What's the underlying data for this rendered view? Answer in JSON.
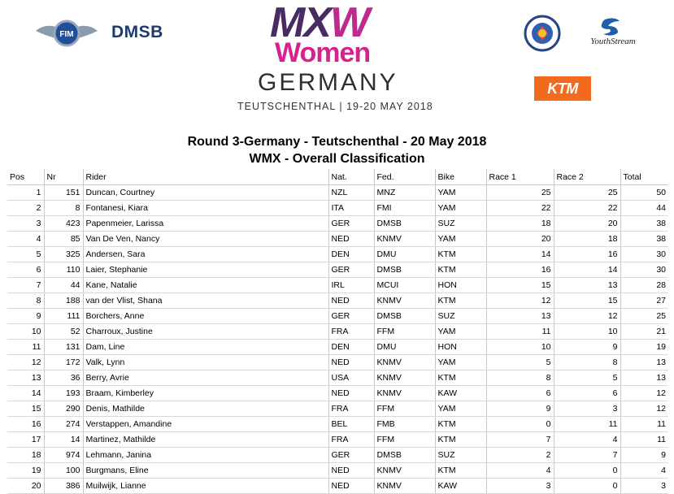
{
  "header": {
    "left_logos": [
      "FIM",
      "DMSB"
    ],
    "event_logo": {
      "mxw_m_x": "MX",
      "mxw_w": "W",
      "women": "Women",
      "country": "GERMANY",
      "venue_dates": "TEUTSCHENTHAL | 19-20 MAY 2018"
    },
    "right_logos": [
      "YouthStream",
      "KTM"
    ]
  },
  "title": {
    "line1": "Round 3-Germany - Teutschenthal - 20 May 2018",
    "line2": "WMX - Overall Classification"
  },
  "table": {
    "columns": [
      "Pos",
      "Nr",
      "Rider",
      "Nat.",
      "Fed.",
      "Bike",
      "Race 1",
      "Race 2",
      "Total"
    ],
    "rows": [
      [
        "1",
        "151",
        "Duncan, Courtney",
        "NZL",
        "MNZ",
        "YAM",
        "25",
        "25",
        "50"
      ],
      [
        "2",
        "8",
        "Fontanesi, Kiara",
        "ITA",
        "FMI",
        "YAM",
        "22",
        "22",
        "44"
      ],
      [
        "3",
        "423",
        "Papenmeier, Larissa",
        "GER",
        "DMSB",
        "SUZ",
        "18",
        "20",
        "38"
      ],
      [
        "4",
        "85",
        "Van De Ven, Nancy",
        "NED",
        "KNMV",
        "YAM",
        "20",
        "18",
        "38"
      ],
      [
        "5",
        "325",
        "Andersen, Sara",
        "DEN",
        "DMU",
        "KTM",
        "14",
        "16",
        "30"
      ],
      [
        "6",
        "110",
        "Laier, Stephanie",
        "GER",
        "DMSB",
        "KTM",
        "16",
        "14",
        "30"
      ],
      [
        "7",
        "44",
        "Kane, Natalie",
        "IRL",
        "MCUI",
        "HON",
        "15",
        "13",
        "28"
      ],
      [
        "8",
        "188",
        "van der Vlist, Shana",
        "NED",
        "KNMV",
        "KTM",
        "12",
        "15",
        "27"
      ],
      [
        "9",
        "111",
        "Borchers, Anne",
        "GER",
        "DMSB",
        "SUZ",
        "13",
        "12",
        "25"
      ],
      [
        "10",
        "52",
        "Charroux, Justine",
        "FRA",
        "FFM",
        "YAM",
        "11",
        "10",
        "21"
      ],
      [
        "11",
        "131",
        "Dam, Line",
        "DEN",
        "DMU",
        "HON",
        "10",
        "9",
        "19"
      ],
      [
        "12",
        "172",
        "Valk, Lynn",
        "NED",
        "KNMV",
        "YAM",
        "5",
        "8",
        "13"
      ],
      [
        "13",
        "36",
        "Berry, Avrie",
        "USA",
        "KNMV",
        "KTM",
        "8",
        "5",
        "13"
      ],
      [
        "14",
        "193",
        "Braam, Kimberley",
        "NED",
        "KNMV",
        "KAW",
        "6",
        "6",
        "12"
      ],
      [
        "15",
        "290",
        "Denis, Mathilde",
        "FRA",
        "FFM",
        "YAM",
        "9",
        "3",
        "12"
      ],
      [
        "16",
        "274",
        "Verstappen, Amandine",
        "BEL",
        "FMB",
        "KTM",
        "0",
        "11",
        "11"
      ],
      [
        "17",
        "14",
        "Martinez, Mathilde",
        "FRA",
        "FFM",
        "KTM",
        "7",
        "4",
        "11"
      ],
      [
        "18",
        "974",
        "Lehmann, Janina",
        "GER",
        "DMSB",
        "SUZ",
        "2",
        "7",
        "9"
      ],
      [
        "19",
        "100",
        "Burgmans, Eline",
        "NED",
        "KNMV",
        "KTM",
        "4",
        "0",
        "4"
      ],
      [
        "20",
        "386",
        "Muilwijk, Lianne",
        "NED",
        "KNMV",
        "KAW",
        "3",
        "0",
        "3"
      ]
    ]
  },
  "colors": {
    "mxw_purple": "#4a2a63",
    "women_pink": "#d6218e",
    "dmsb_blue": "#1f3a6e",
    "ktm_orange": "#f26b1d"
  }
}
